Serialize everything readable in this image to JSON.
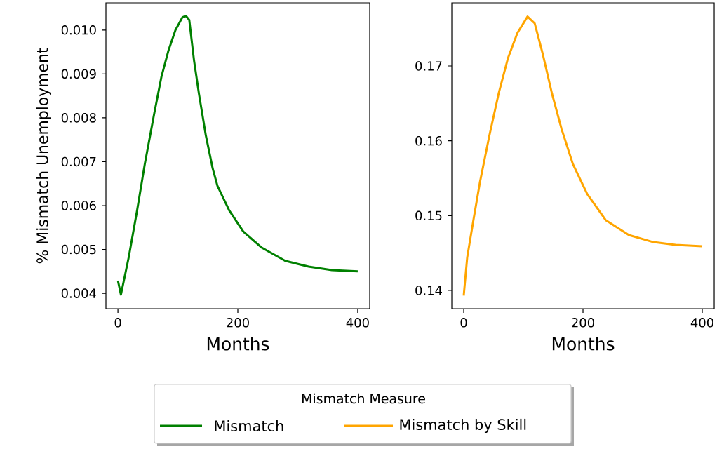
{
  "chart_data": [
    {
      "type": "line",
      "ylabel": "% Mismatch Unemployment",
      "xlabel": "Months",
      "legend": "bottom",
      "legend_title": "Mismatch Measure",
      "x": [
        0,
        5,
        18,
        32,
        45,
        61,
        72.5,
        84,
        96,
        107.6,
        113.5,
        119,
        127,
        135,
        146.6,
        158,
        166,
        185.6,
        209,
        240,
        279,
        318,
        357,
        400
      ],
      "series": [
        {
          "name": "Mismatch",
          "color": "#008000",
          "values": [
            0.00429,
            0.00397,
            0.00482,
            0.00589,
            0.00696,
            0.00813,
            0.00893,
            0.00952,
            0.01,
            0.01029,
            0.01032,
            0.01023,
            0.0093,
            0.00856,
            0.0076,
            0.00685,
            0.00645,
            0.00589,
            0.00541,
            0.00504,
            0.00474,
            0.00461,
            0.00453,
            0.0045
          ]
        }
      ],
      "xlim": [
        -20,
        420
      ],
      "ylim": [
        0.00365,
        0.01062
      ],
      "xticks": [
        0,
        200,
        400
      ],
      "yticks": [
        0.004,
        0.005,
        0.006,
        0.007,
        0.008,
        0.009,
        {
          "value": 0.01,
          "label": "0.010"
        }
      ]
    },
    {
      "type": "line",
      "xlabel": "Months",
      "legend": "bottom",
      "x": [
        0,
        5.8,
        15.6,
        27,
        43,
        58.5,
        74,
        90,
        107,
        119,
        132.5,
        148,
        164,
        183,
        207,
        238,
        277,
        316,
        355,
        400
      ],
      "series": [
        {
          "name": "Mismatch by Skill",
          "color": "#ffa500",
          "values": [
            0.1393,
            0.1444,
            0.1491,
            0.1544,
            0.1607,
            0.1663,
            0.171,
            0.1744,
            0.1766,
            0.1757,
            0.1716,
            0.1663,
            0.1616,
            0.1569,
            0.1529,
            0.1494,
            0.1474,
            0.1465,
            0.1461,
            0.1459
          ]
        }
      ],
      "xlim": [
        -20,
        420
      ],
      "ylim": [
        0.13756,
        0.17844
      ],
      "xticks": [
        0,
        200,
        400
      ],
      "yticks": [
        0.14,
        0.15,
        0.16,
        0.17
      ]
    }
  ]
}
